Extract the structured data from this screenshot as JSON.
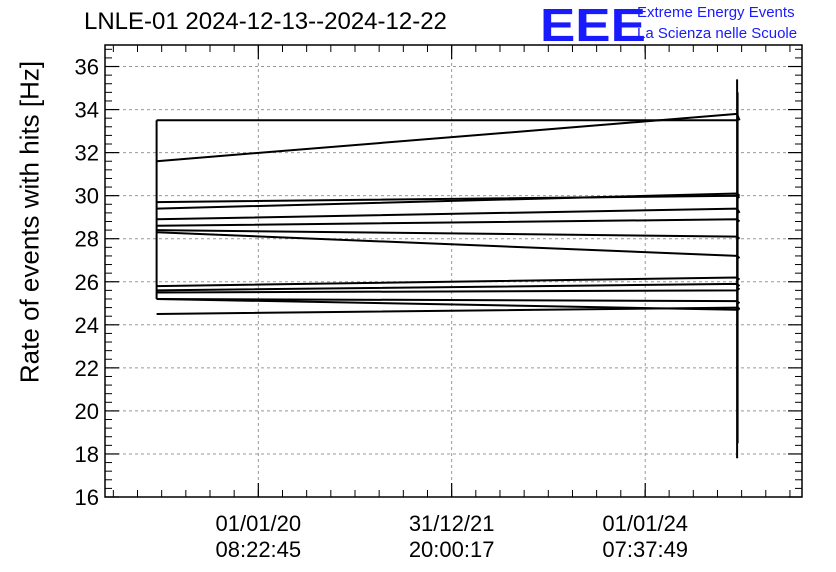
{
  "chart_data": {
    "type": "line",
    "title": "LNLE-01 2024-12-13--2024-12-22",
    "ylabel": "Rate of events with hits [Hz]",
    "xlabel": "",
    "ylim": [
      16,
      37
    ],
    "yticks": [
      16,
      18,
      20,
      22,
      24,
      26,
      28,
      30,
      32,
      34,
      36
    ],
    "xlim": [
      "2018-06-01",
      "2025-08-15"
    ],
    "xticks": [
      {
        "date": "2020-01-01",
        "line1": "01/01/20",
        "line2": "08:22:45"
      },
      {
        "date": "2021-12-31",
        "line1": "31/12/21",
        "line2": "20:00:17"
      },
      {
        "date": "2024-01-01",
        "line1": "01/01/24",
        "line2": "07:37:49"
      }
    ],
    "grid": true,
    "series": [
      {
        "x": [
          "2018-12-13",
          "2024-12-13",
          "2024-12-22"
        ],
        "values": [
          31.6,
          33.8,
          33.5
        ]
      },
      {
        "x": [
          "2018-12-13",
          "2024-12-13",
          "2024-12-22"
        ],
        "values": [
          29.7,
          30.0,
          29.9
        ]
      },
      {
        "x": [
          "2018-12-13",
          "2024-12-13",
          "2024-12-22"
        ],
        "values": [
          29.4,
          30.1,
          30.0
        ]
      },
      {
        "x": [
          "2018-12-13",
          "2024-12-13",
          "2024-12-22"
        ],
        "values": [
          28.9,
          29.4,
          29.2
        ]
      },
      {
        "x": [
          "2018-12-13",
          "2024-12-13",
          "2024-12-22"
        ],
        "values": [
          28.6,
          28.9,
          28.8
        ]
      },
      {
        "x": [
          "2018-12-13",
          "2024-12-13",
          "2024-12-22"
        ],
        "values": [
          28.4,
          28.1,
          28.0
        ]
      },
      {
        "x": [
          "2018-12-13",
          "2024-12-13",
          "2024-12-22"
        ],
        "values": [
          28.3,
          27.2,
          27.1
        ]
      },
      {
        "x": [
          "2018-12-13",
          "2024-12-13",
          "2024-12-22"
        ],
        "values": [
          25.8,
          26.2,
          26.1
        ]
      },
      {
        "x": [
          "2018-12-13",
          "2024-12-13",
          "2024-12-22"
        ],
        "values": [
          25.6,
          25.9,
          25.8
        ]
      },
      {
        "x": [
          "2018-12-13",
          "2024-12-13",
          "2024-12-22"
        ],
        "values": [
          25.5,
          25.6,
          25.7
        ]
      },
      {
        "x": [
          "2018-12-13",
          "2024-12-13",
          "2024-12-22"
        ],
        "values": [
          25.2,
          25.1,
          25.0
        ]
      },
      {
        "x": [
          "2018-12-13",
          "2024-12-13",
          "2024-12-22"
        ],
        "values": [
          24.5,
          24.8,
          24.7
        ]
      },
      {
        "x": [
          "2018-12-13",
          "2024-12-13",
          "2024-12-22"
        ],
        "values": [
          25.2,
          24.7,
          24.8
        ]
      },
      {
        "x": [
          "2018-12-13",
          "2018-12-13"
        ],
        "values": [
          33.5,
          25.2
        ]
      },
      {
        "x": [
          "2018-12-13",
          "2024-12-13"
        ],
        "values": [
          33.5,
          33.5
        ]
      },
      {
        "x": [
          "2024-12-13",
          "2024-12-13"
        ],
        "values": [
          17.8,
          35.4
        ]
      },
      {
        "x": [
          "2024-12-15",
          "2024-12-15"
        ],
        "values": [
          18.5,
          34.8
        ]
      }
    ]
  },
  "logo": {
    "mark": "EEE",
    "line1": "Extreme Energy Events",
    "line2": "La Scienza nelle Scuole"
  }
}
